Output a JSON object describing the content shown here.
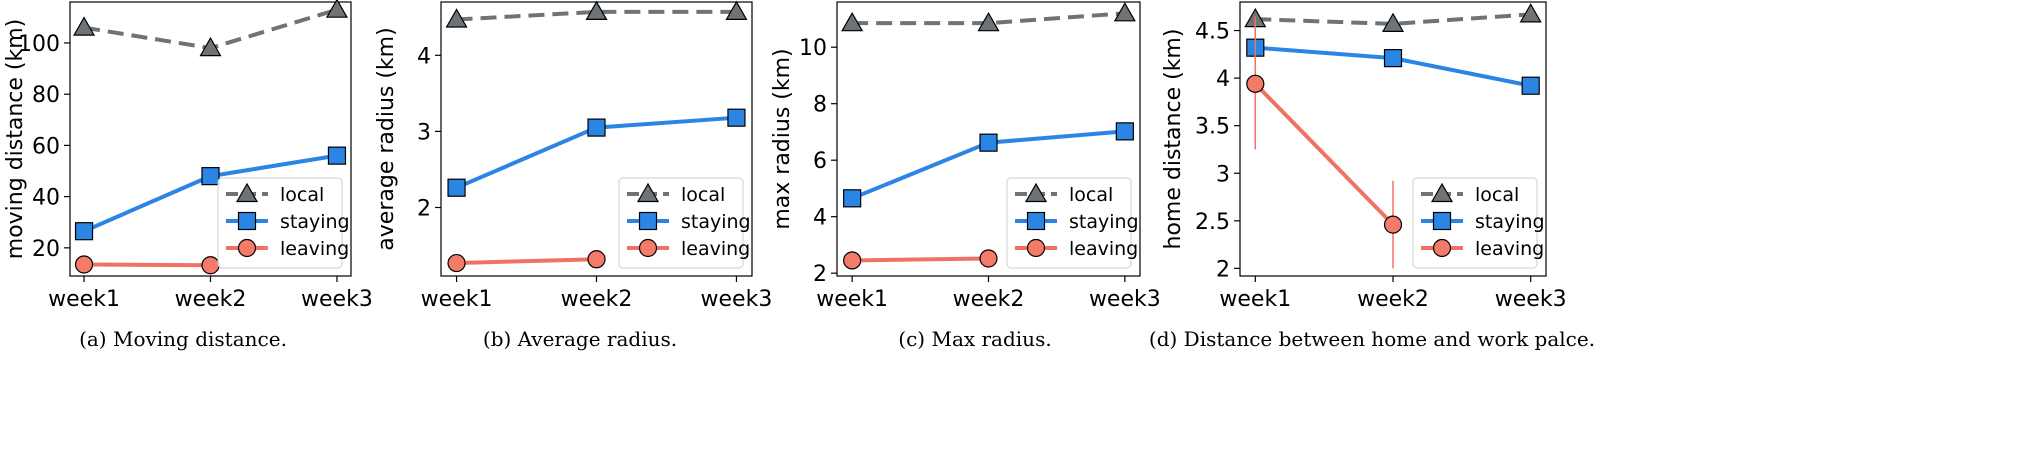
{
  "legend_labels": [
    "local",
    "staying",
    "leaving"
  ],
  "colors": {
    "local": "#6e7378",
    "staying": "#2b85e4",
    "leaving": "#f07264",
    "leaving_marker": "#f47a6a"
  },
  "chart_data": [
    {
      "type": "line",
      "caption": "(a)  Moving distance.",
      "x": [
        "week1",
        "week2",
        "week3"
      ],
      "ylabel": "moving distance (km)",
      "ylim": [
        9,
        116
      ],
      "yticks": [
        20,
        40,
        60,
        80,
        100
      ],
      "grid": false,
      "legend": "lower-right",
      "series": [
        {
          "name": "local",
          "values": [
            106,
            98,
            113
          ]
        },
        {
          "name": "staying",
          "values": [
            26.5,
            48,
            56
          ]
        },
        {
          "name": "leaving",
          "values": [
            13.5,
            13.2,
            null
          ]
        }
      ]
    },
    {
      "type": "line",
      "caption": "(b)  Average radius.",
      "x": [
        "week1",
        "week2",
        "week3"
      ],
      "ylabel": "average radius (km)",
      "ylim": [
        1.1,
        4.7
      ],
      "yticks": [
        2,
        3,
        4
      ],
      "grid": false,
      "legend": "lower-right",
      "series": [
        {
          "name": "local",
          "values": [
            4.47,
            4.57,
            4.57
          ]
        },
        {
          "name": "staying",
          "values": [
            2.26,
            3.05,
            3.18
          ]
        },
        {
          "name": "leaving",
          "values": [
            1.27,
            1.32,
            null
          ]
        }
      ]
    },
    {
      "type": "line",
      "caption": "(c)  Max radius.",
      "x": [
        "week1",
        "week2",
        "week3"
      ],
      "ylabel": "max radius (km)",
      "ylim": [
        1.9,
        11.6
      ],
      "yticks": [
        2,
        4,
        6,
        8,
        10
      ],
      "grid": false,
      "legend": "lower-right",
      "series": [
        {
          "name": "local",
          "values": [
            10.85,
            10.85,
            11.2
          ]
        },
        {
          "name": "staying",
          "values": [
            4.65,
            6.62,
            7.02
          ]
        },
        {
          "name": "leaving",
          "values": [
            2.45,
            2.52,
            null
          ]
        }
      ]
    },
    {
      "type": "line",
      "caption": "(d)  Distance between home and work palce.",
      "x": [
        "week1",
        "week2",
        "week3"
      ],
      "ylabel": "home distance (km)",
      "ylim": [
        1.92,
        4.8
      ],
      "yticks": [
        2.0,
        2.5,
        3.0,
        3.5,
        4.0,
        4.5
      ],
      "grid": false,
      "legend": "lower-right",
      "series": [
        {
          "name": "local",
          "values": [
            4.62,
            4.57,
            4.67
          ]
        },
        {
          "name": "staying",
          "values": [
            4.32,
            4.21,
            3.92
          ]
        },
        {
          "name": "leaving",
          "values": [
            3.94,
            2.46,
            null
          ],
          "error": [
            [
              3.25,
              4.65
            ],
            [
              2.0,
              2.92
            ],
            null
          ]
        }
      ]
    }
  ]
}
